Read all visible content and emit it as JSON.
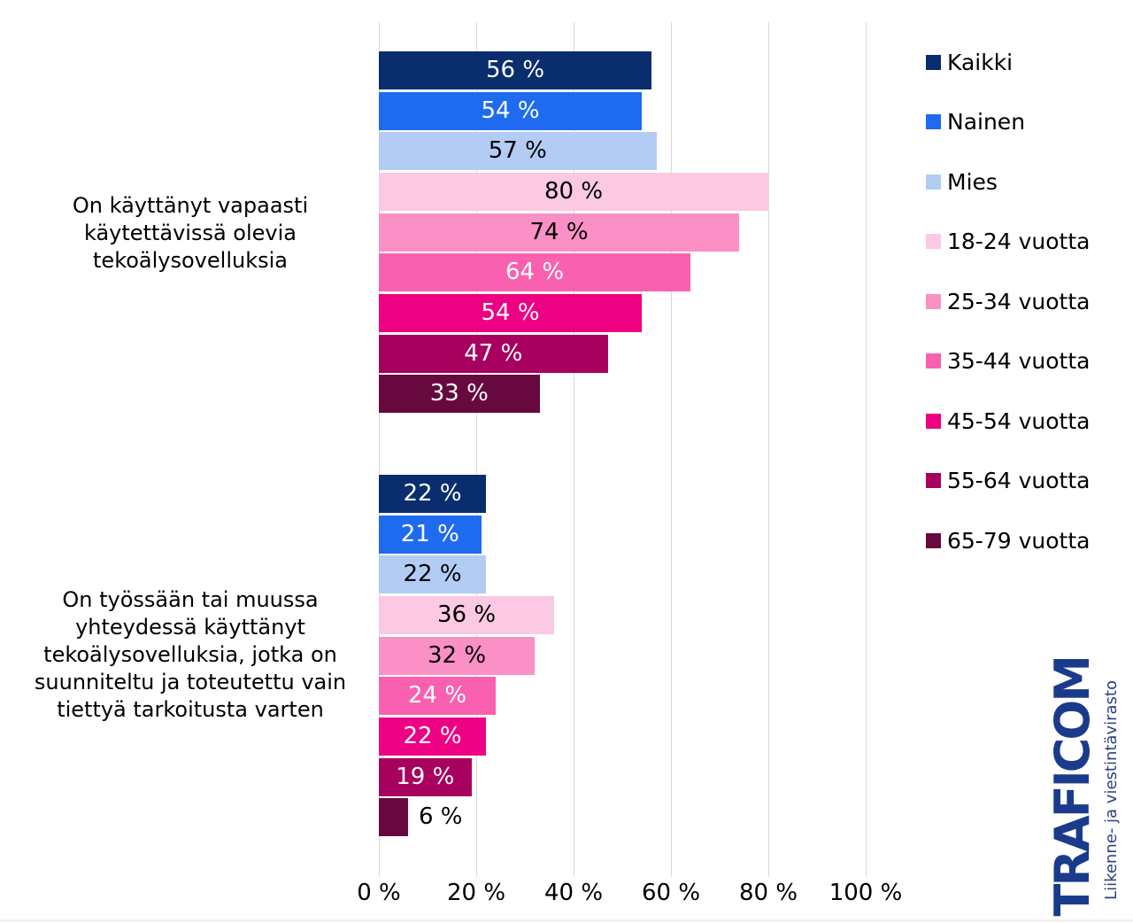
{
  "chart_data": {
    "type": "bar",
    "orientation": "horizontal",
    "title": "",
    "categories": [
      "On käyttänyt vapaasti\nkäytettävissä olevia\ntekoälysovelluksia",
      "On työssään tai muussa\nyhteydessä käyttänyt\ntekoälysovelluksia, jotka on\nsuunniteltu ja toteutettu vain\ntiettyä tarkoitusta varten"
    ],
    "series": [
      {
        "name": "Kaikki",
        "color": "#0A2D6E",
        "label_color": "#FFFFFF",
        "values": [
          56,
          22
        ]
      },
      {
        "name": "Nainen",
        "color": "#1E6BF0",
        "label_color": "#FFFFFF",
        "values": [
          54,
          21
        ]
      },
      {
        "name": "Mies",
        "color": "#B3CCF4",
        "label_color": "#000000",
        "values": [
          57,
          22
        ]
      },
      {
        "name": "18-24 vuotta",
        "color": "#FBC9E1",
        "label_color": "#000000",
        "values": [
          80,
          36
        ]
      },
      {
        "name": "25-34 vuotta",
        "color": "#FB90C6",
        "label_color": "#000000",
        "values": [
          74,
          32
        ]
      },
      {
        "name": "35-44 vuotta",
        "color": "#FA60B0",
        "label_color": "#FFFFFF",
        "values": [
          64,
          24
        ]
      },
      {
        "name": "45-54 vuotta",
        "color": "#EE0082",
        "label_color": "#FFFFFF",
        "values": [
          54,
          22
        ]
      },
      {
        "name": "55-64 vuotta",
        "color": "#A8005E",
        "label_color": "#FFFFFF",
        "values": [
          47,
          19
        ]
      },
      {
        "name": "65-79 vuotta",
        "color": "#67093E",
        "label_color": "#FFFFFF",
        "values": [
          33,
          6
        ]
      }
    ],
    "x_axis": {
      "ticks": [
        "0 %",
        "20 %",
        "40 %",
        "60 %",
        "80 %",
        "100 %"
      ],
      "min": 0,
      "max": 100
    },
    "value_suffix": " %",
    "grid": "vertical-only",
    "legend_position": "right"
  },
  "logo": {
    "brand": "TRAFICOM",
    "subtitle": "Liikenne- ja viestintävirasto",
    "brand_color": "#1A3B8C",
    "subtitle_color": "#2E4080"
  },
  "colors": {
    "background": "#FFFFFF",
    "gridline": "#D9D9D9",
    "footer_line": "#F1F1F1"
  }
}
